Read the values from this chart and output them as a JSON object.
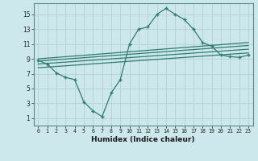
{
  "title": "",
  "xlabel": "Humidex (Indice chaleur)",
  "bg_color": "#cce8ec",
  "line_color": "#2d7d6e",
  "grid_color": "#b8d4d8",
  "xlim": [
    -0.5,
    23.5
  ],
  "ylim": [
    0.0,
    16.5
  ],
  "yticks": [
    1,
    3,
    5,
    7,
    9,
    11,
    13,
    15
  ],
  "main_curve_x": [
    0,
    1,
    2,
    3,
    4,
    5,
    6,
    7,
    8,
    9,
    10,
    11,
    12,
    13,
    14,
    15,
    16,
    17,
    18,
    19,
    20,
    21,
    22,
    23
  ],
  "main_curve_y": [
    8.8,
    8.3,
    7.1,
    6.5,
    6.2,
    3.2,
    2.0,
    1.2,
    4.4,
    6.2,
    11.0,
    13.0,
    13.3,
    15.0,
    15.8,
    15.0,
    14.3,
    13.0,
    11.2,
    10.7,
    9.5,
    9.3,
    9.2,
    9.5
  ],
  "line1_x": [
    0,
    23
  ],
  "line1_y": [
    9.0,
    11.2
  ],
  "line2_x": [
    0,
    23
  ],
  "line2_y": [
    8.7,
    10.8
  ],
  "line3_x": [
    0,
    23
  ],
  "line3_y": [
    8.3,
    10.3
  ],
  "line4_x": [
    0,
    23
  ],
  "line4_y": [
    7.8,
    9.8
  ]
}
